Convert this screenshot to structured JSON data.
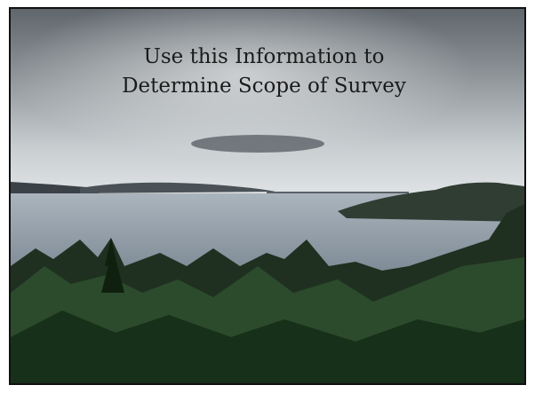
{
  "slide": {
    "title_lines": [
      "Use this Information to",
      "Determine Scope of Survey"
    ]
  }
}
